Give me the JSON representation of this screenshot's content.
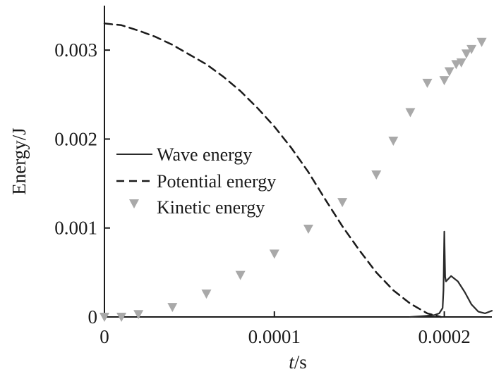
{
  "chart_data": {
    "type": "line",
    "xlabel_italic": "t",
    "xlabel_unit": "/s",
    "ylabel": "Energy/J",
    "xlim": [
      0,
      0.000228
    ],
    "ylim": [
      0,
      0.0035
    ],
    "x_ticks": [
      {
        "value": 0,
        "label": "0"
      },
      {
        "value": 0.0001,
        "label": "0.0001"
      },
      {
        "value": 0.0002,
        "label": "0.0002"
      }
    ],
    "y_ticks": [
      {
        "value": 0,
        "label": "0"
      },
      {
        "value": 0.001,
        "label": "0.001"
      },
      {
        "value": 0.002,
        "label": "0.002"
      },
      {
        "value": 0.003,
        "label": "0.003"
      }
    ],
    "legend_position": "middle-left",
    "series": [
      {
        "name": "Wave energy",
        "style": "solid",
        "color": "#2a2a2a",
        "x": [
          0.00018,
          0.000188,
          0.000194,
          0.000197,
          0.000199,
          0.0001995,
          0.0002,
          0.0002005,
          0.000201,
          0.000204,
          0.000208,
          0.000212,
          0.000216,
          0.00022,
          0.000224,
          0.000228
        ],
        "y": [
          0,
          1e-05,
          2e-05,
          4e-05,
          0.0001,
          0.0003,
          0.00096,
          0.00045,
          0.0004,
          0.00046,
          0.0004,
          0.00028,
          0.00014,
          6e-05,
          4e-05,
          7e-05
        ]
      },
      {
        "name": "Potential energy",
        "style": "dashed",
        "color": "#1a1a1a",
        "x": [
          0,
          1e-05,
          2e-05,
          3e-05,
          4e-05,
          5e-05,
          6e-05,
          7e-05,
          8e-05,
          9e-05,
          0.0001,
          0.00011,
          0.00012,
          0.00013,
          0.00014,
          0.00015,
          0.00016,
          0.00017,
          0.00018,
          0.00019,
          0.000198
        ],
        "y": [
          0.0033,
          0.00328,
          0.00322,
          0.00315,
          0.00306,
          0.00295,
          0.00284,
          0.0027,
          0.00254,
          0.00235,
          0.00214,
          0.0019,
          0.00163,
          0.00132,
          0.00102,
          0.00075,
          0.0005,
          0.0003,
          0.00015,
          4e-05,
          0
        ]
      },
      {
        "name": "Kinetic energy",
        "style": "markers",
        "marker": "triangle-down",
        "color": "#a9a9a9",
        "x": [
          0,
          1e-05,
          2e-05,
          4e-05,
          6e-05,
          8e-05,
          0.0001,
          0.00012,
          0.00014,
          0.00016,
          0.00017,
          0.00018,
          0.00019,
          0.0002,
          0.000203,
          0.000207,
          0.00021,
          0.000213,
          0.000216,
          0.000222
        ],
        "y": [
          0,
          0,
          3e-05,
          0.00011,
          0.00026,
          0.00047,
          0.00071,
          0.00099,
          0.00129,
          0.0016,
          0.00198,
          0.0023,
          0.00263,
          0.00266,
          0.00276,
          0.00284,
          0.00286,
          0.00296,
          0.00301,
          0.00309
        ]
      }
    ]
  }
}
